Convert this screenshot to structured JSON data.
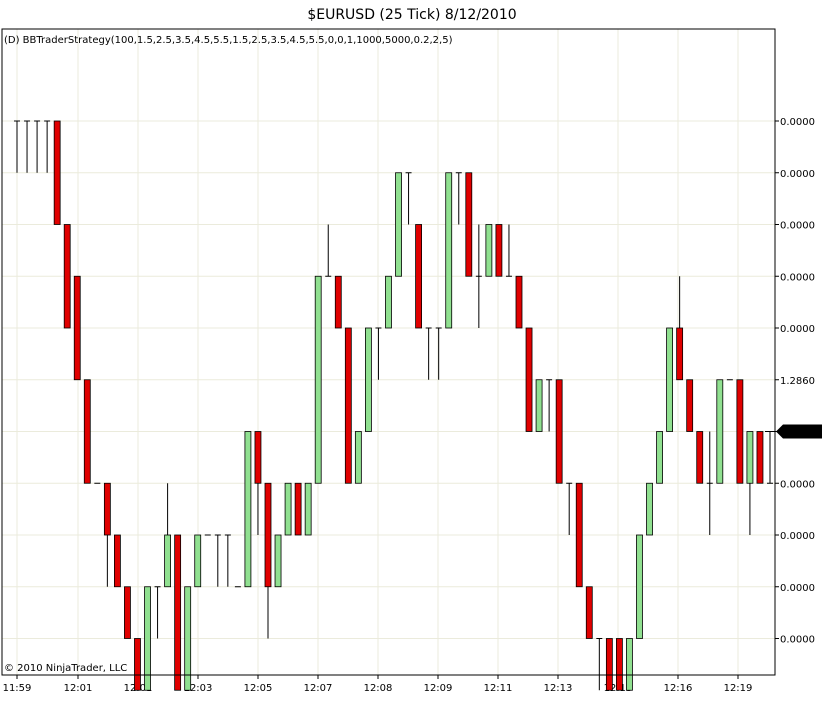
{
  "header": {
    "title": "$EURUSD (25 Tick)  8/12/2010",
    "indicator": "(D) BBTraderStrategy(100,1.5,2.5,3.5,4.5,5.5,1.5,2.5,3.5,4.5,5.5,0,0,1,1000,5000,0.2,2,5)"
  },
  "footer": {
    "copyright": "© 2010 NinjaTrader, LLC"
  },
  "colors": {
    "up": "#90e090",
    "down": "#e00000",
    "outline": "#000000",
    "grid": "#ebebdc",
    "background": "#ffffff"
  },
  "chart_data": {
    "type": "candlestick",
    "x_labels": [
      "11:59",
      "12:01",
      "12:01",
      "12:03",
      "12:05",
      "12:07",
      "12:08",
      "12:09",
      "12:11",
      "12:13",
      "12:15",
      "12:16",
      "12:19"
    ],
    "y_ticks": [
      "0.0000",
      "0.0000",
      "0.0000",
      "0.0000",
      "0.0000",
      "1.2860",
      "0.0000",
      "0.0000",
      "0.0000",
      "0.0000",
      "0.0000"
    ],
    "y_tick_levels": [
      11,
      10,
      9,
      8,
      7,
      6,
      5,
      4,
      3,
      2,
      1
    ],
    "current_price_label": "0.0000",
    "current_price_level": 5,
    "grid": true,
    "price_unit_note": "levels are box steps from the lowest grid line (1)",
    "bars": [
      {
        "o": 11,
        "h": 11,
        "l": 10,
        "c": 11
      },
      {
        "o": 11,
        "h": 11,
        "l": 10,
        "c": 11
      },
      {
        "o": 11,
        "h": 11,
        "l": 10,
        "c": 11
      },
      {
        "o": 11,
        "h": 11,
        "l": 10,
        "c": 11
      },
      {
        "o": 11,
        "h": 11,
        "l": 9,
        "c": 9
      },
      {
        "o": 9,
        "h": 9,
        "l": 7,
        "c": 7
      },
      {
        "o": 8,
        "h": 8,
        "l": 6,
        "c": 6
      },
      {
        "o": 6,
        "h": 6,
        "l": 4,
        "c": 4
      },
      {
        "o": 4,
        "h": 4,
        "l": 4,
        "c": 4
      },
      {
        "o": 4,
        "h": 4,
        "l": 2,
        "c": 3
      },
      {
        "o": 3,
        "h": 3,
        "l": 2,
        "c": 2
      },
      {
        "o": 2,
        "h": 2,
        "l": 1,
        "c": 1
      },
      {
        "o": 1,
        "h": 1,
        "l": 1,
        "c": 0
      },
      {
        "o": 0,
        "h": 2,
        "l": 0,
        "c": 2
      },
      {
        "o": 2,
        "h": 2,
        "l": 1,
        "c": 2
      },
      {
        "o": 2,
        "h": 4,
        "l": 2,
        "c": 3
      },
      {
        "o": 3,
        "h": 3,
        "l": 0,
        "c": 0
      },
      {
        "o": 0,
        "h": 2,
        "l": 0,
        "c": 2
      },
      {
        "o": 2,
        "h": 3,
        "l": 2,
        "c": 3
      },
      {
        "o": 3,
        "h": 3,
        "l": 3,
        "c": 3
      },
      {
        "o": 3,
        "h": 3,
        "l": 2,
        "c": 3
      },
      {
        "o": 3,
        "h": 3,
        "l": 2,
        "c": 3
      },
      {
        "o": 2,
        "h": 2,
        "l": 2,
        "c": 2
      },
      {
        "o": 2,
        "h": 5,
        "l": 2,
        "c": 5
      },
      {
        "o": 5,
        "h": 5,
        "l": 3,
        "c": 4
      },
      {
        "o": 4,
        "h": 4,
        "l": 1,
        "c": 2
      },
      {
        "o": 2,
        "h": 3,
        "l": 2,
        "c": 3
      },
      {
        "o": 3,
        "h": 4,
        "l": 3,
        "c": 4
      },
      {
        "o": 4,
        "h": 4,
        "l": 3,
        "c": 3
      },
      {
        "o": 3,
        "h": 4,
        "l": 3,
        "c": 4
      },
      {
        "o": 4,
        "h": 8,
        "l": 4,
        "c": 8
      },
      {
        "o": 8,
        "h": 9,
        "l": 8,
        "c": 8
      },
      {
        "o": 8,
        "h": 8,
        "l": 7,
        "c": 7
      },
      {
        "o": 7,
        "h": 7,
        "l": 4,
        "c": 4
      },
      {
        "o": 4,
        "h": 5,
        "l": 4,
        "c": 5
      },
      {
        "o": 5,
        "h": 7,
        "l": 5,
        "c": 7
      },
      {
        "o": 7,
        "h": 7,
        "l": 6,
        "c": 7
      },
      {
        "o": 7,
        "h": 8,
        "l": 7,
        "c": 8
      },
      {
        "o": 8,
        "h": 10,
        "l": 8,
        "c": 10
      },
      {
        "o": 10,
        "h": 10,
        "l": 9,
        "c": 10
      },
      {
        "o": 9,
        "h": 9,
        "l": 7,
        "c": 7
      },
      {
        "o": 7,
        "h": 7,
        "l": 6,
        "c": 7
      },
      {
        "o": 7,
        "h": 7,
        "l": 6,
        "c": 7
      },
      {
        "o": 7,
        "h": 10,
        "l": 7,
        "c": 10
      },
      {
        "o": 10,
        "h": 10,
        "l": 9,
        "c": 10
      },
      {
        "o": 10,
        "h": 10,
        "l": 8,
        "c": 8
      },
      {
        "o": 8,
        "h": 9,
        "l": 7,
        "c": 8
      },
      {
        "o": 8,
        "h": 9,
        "l": 8,
        "c": 9
      },
      {
        "o": 9,
        "h": 9,
        "l": 8,
        "c": 8
      },
      {
        "o": 8,
        "h": 9,
        "l": 8,
        "c": 8
      },
      {
        "o": 8,
        "h": 8,
        "l": 7,
        "c": 7
      },
      {
        "o": 7,
        "h": 7,
        "l": 6,
        "c": 5
      },
      {
        "o": 5,
        "h": 6,
        "l": 5,
        "c": 6
      },
      {
        "o": 6,
        "h": 6,
        "l": 5,
        "c": 6
      },
      {
        "o": 6,
        "h": 6,
        "l": 4,
        "c": 4
      },
      {
        "o": 4,
        "h": 4,
        "l": 3,
        "c": 4
      },
      {
        "o": 4,
        "h": 4,
        "l": 2,
        "c": 2
      },
      {
        "o": 2,
        "h": 2,
        "l": 1,
        "c": 1
      },
      {
        "o": 1,
        "h": 1,
        "l": 0,
        "c": 1
      },
      {
        "o": 1,
        "h": 1,
        "l": 0,
        "c": 0
      },
      {
        "o": 1,
        "h": 1,
        "l": 0,
        "c": 0
      },
      {
        "o": 0,
        "h": 1,
        "l": 0,
        "c": 1
      },
      {
        "o": 1,
        "h": 3,
        "l": 1,
        "c": 3
      },
      {
        "o": 3,
        "h": 4,
        "l": 3,
        "c": 4
      },
      {
        "o": 4,
        "h": 5,
        "l": 4,
        "c": 5
      },
      {
        "o": 5,
        "h": 7,
        "l": 5,
        "c": 7
      },
      {
        "o": 7,
        "h": 8,
        "l": 6,
        "c": 6
      },
      {
        "o": 6,
        "h": 6,
        "l": 5,
        "c": 5
      },
      {
        "o": 5,
        "h": 5,
        "l": 4,
        "c": 4
      },
      {
        "o": 4,
        "h": 5,
        "l": 3,
        "c": 4
      },
      {
        "o": 4,
        "h": 6,
        "l": 4,
        "c": 6
      },
      {
        "o": 6,
        "h": 6,
        "l": 6,
        "c": 6
      },
      {
        "o": 6,
        "h": 6,
        "l": 4,
        "c": 4
      },
      {
        "o": 4,
        "h": 5,
        "l": 3,
        "c": 5
      },
      {
        "o": 5,
        "h": 5,
        "l": 4,
        "c": 4
      },
      {
        "o": 4,
        "h": 5,
        "l": 4,
        "c": 4
      }
    ]
  }
}
